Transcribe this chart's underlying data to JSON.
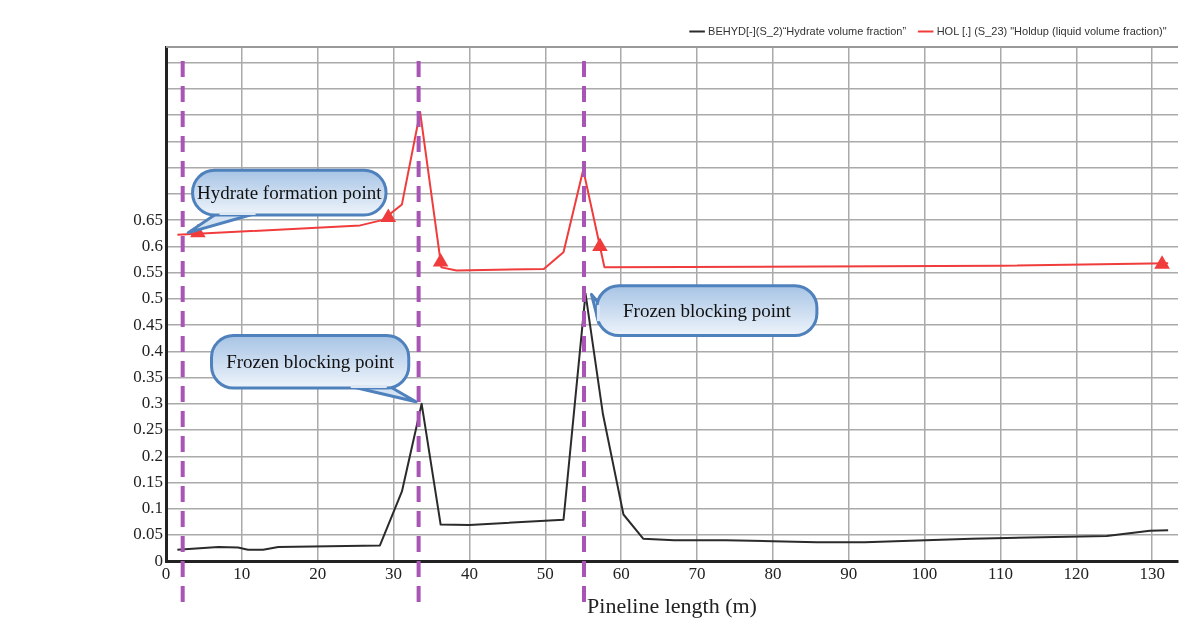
{
  "chart_data": {
    "type": "line",
    "xlabel": "Pineline length (m)",
    "xlim": [
      0,
      133.4
    ],
    "xticks": [
      0,
      10,
      20,
      30,
      40,
      50,
      60,
      70,
      80,
      90,
      100,
      110,
      120,
      130
    ],
    "ylim": [
      0,
      0.98
    ],
    "yticks": [
      0,
      0.05,
      0.1,
      0.15,
      0.2,
      0.25,
      0.3,
      0.35,
      0.4,
      0.45,
      0.5,
      0.55,
      0.6,
      0.65,
      {
        "value": 0.7,
        "label": null
      },
      {
        "value": 0.75,
        "label": null
      },
      {
        "value": 0.8,
        "label": null
      },
      {
        "value": 0.85,
        "label": null
      },
      {
        "value": 0.9,
        "label": null
      },
      {
        "value": 0.95,
        "label": null
      }
    ],
    "grid": true,
    "legend": "top right",
    "series": [
      {
        "name": "BEHYD[-](S_2)“Hydrate volume fraction”",
        "type": "line",
        "color": "#2b2b2b",
        "marker": "none",
        "x": [
          1.5,
          6.9,
          9.5,
          10.8,
          12.8,
          14.8,
          28.2,
          31.1,
          33.7,
          36.2,
          40,
          52.4,
          55.3,
          57.6,
          60.3,
          62.9,
          67,
          73.8,
          85.8,
          92.1,
          106.2,
          124,
          129.7,
          132.1
        ],
        "values": [
          0.022,
          0.027,
          0.026,
          0.022,
          0.022,
          0.027,
          0.03,
          0.133,
          0.3,
          0.07,
          0.069,
          0.079,
          0.51,
          0.28,
          0.089,
          0.043,
          0.04,
          0.04,
          0.036,
          0.036,
          0.043,
          0.048,
          0.058,
          0.059
        ]
      },
      {
        "name": "HOL [.] (S_23) \"Holdup (liquid volume fraction)\"",
        "type": "line",
        "color": "#f03c3c",
        "marker": "none",
        "x": [
          1.5,
          25.6,
          28.5,
          31.1,
          33.5,
          36.3,
          38.3,
          49.8,
          52.4,
          55,
          57.8,
          110,
          132.1
        ],
        "values": [
          0.622,
          0.64,
          0.65,
          0.68,
          0.856,
          0.56,
          0.554,
          0.557,
          0.589,
          0.746,
          0.56,
          0.563,
          0.568
        ]
      },
      {
        "type": "scatter",
        "color": "#f03c3c",
        "marker": "triangle",
        "x": [
          4.2,
          29.3,
          36.2,
          57.2,
          131.3
        ],
        "values": [
          0.626,
          0.655,
          0.57,
          0.6,
          0.566
        ]
      }
    ],
    "ref_lines": [
      {
        "axis": "x",
        "value": 2.2,
        "color": "#a855b5",
        "line_style": "dashed"
      },
      {
        "axis": "x",
        "value": 33.3,
        "color": "#a855b5",
        "line_style": "dashed"
      },
      {
        "axis": "x",
        "value": 55.1,
        "color": "#a855b5",
        "line_style": "dashed"
      }
    ],
    "annotations": [
      {
        "text": "Hydrate formation point",
        "x": 2.2,
        "y": 0.622
      },
      {
        "text": "Frozen blocking point",
        "x": 33.7,
        "y": 0.3
      },
      {
        "text": "Frozen blocking point",
        "x": 55.3,
        "y": 0.51
      }
    ]
  }
}
